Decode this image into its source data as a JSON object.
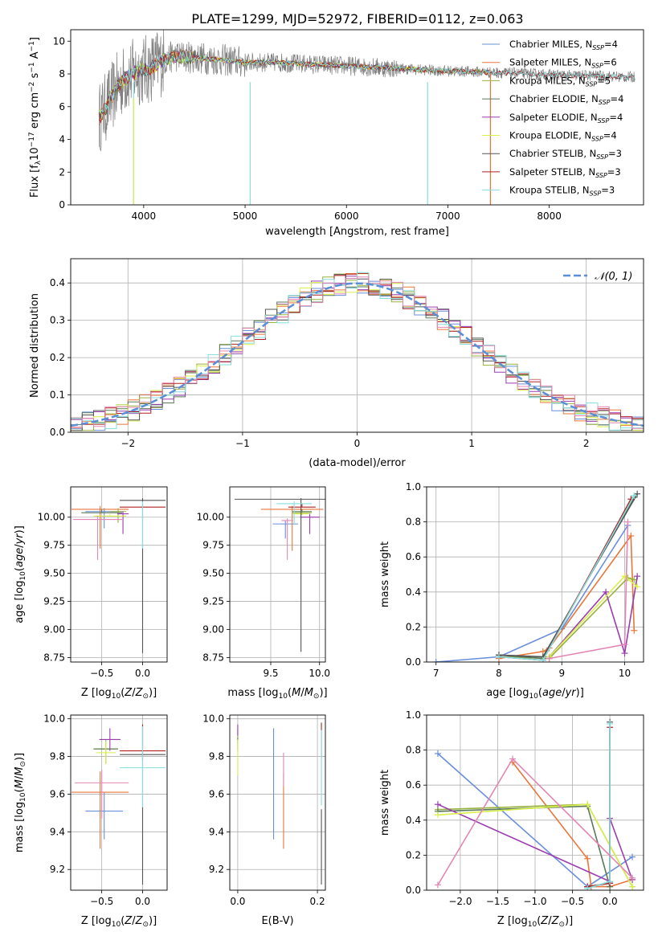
{
  "figure_title": "PLATE=1299, MJD=52972, FIBERID=0112, z=0.063",
  "colors": [
    "#6a8fdb",
    "#e8763a",
    "#98b23e",
    "#5a7a5a",
    "#9b3db0",
    "#d9ef4c",
    "#555555",
    "#b22222",
    "#86dede",
    "#e386b4"
  ],
  "model_names": [
    "Chabrier MILES",
    "Salpeter MILES",
    "Kroupa MILES",
    "Chabrier ELODIE",
    "Salpeter ELODIE",
    "Kroupa ELODIE",
    "Chabrier STELIB",
    "Salpeter STELIB",
    "Kroupa STELIB"
  ],
  "chart_data": [
    {
      "id": "spectrum",
      "type": "line",
      "title": "PLATE=1299, MJD=52972, FIBERID=0112, z=0.063",
      "xlabel": "wavelength [Angstrom, rest frame]",
      "ylabel": "Flux [f_λ 10^-17 erg cm^-2 s^-1 A^-1]",
      "xlim": [
        3280,
        8930
      ],
      "ylim": [
        0,
        10.7
      ],
      "xticks": [
        "4000",
        "5000",
        "6000",
        "7000",
        "8000"
      ],
      "yticks": [
        "0",
        "2",
        "4",
        "6",
        "8",
        "10"
      ],
      "grid": false,
      "legend_position": "top-right",
      "legend": [
        {
          "label": "Chabrier MILES, N",
          "sub": "SSP",
          "suffix": "=4"
        },
        {
          "label": "Salpeter MILES, N",
          "sub": "SSP",
          "suffix": "=6"
        },
        {
          "label": "Kroupa MILES, N",
          "sub": "SSP",
          "suffix": "=5"
        },
        {
          "label": "Chabrier ELODIE, N",
          "sub": "SSP",
          "suffix": "=4"
        },
        {
          "label": "Salpeter ELODIE, N",
          "sub": "SSP",
          "suffix": "=4"
        },
        {
          "label": "Kroupa ELODIE, N",
          "sub": "SSP",
          "suffix": "=4"
        },
        {
          "label": "Chabrier STELIB, N",
          "sub": "SSP",
          "suffix": "=3"
        },
        {
          "label": "Salpeter STELIB, N",
          "sub": "SSP",
          "suffix": "=3"
        },
        {
          "label": "Kroupa STELIB, N",
          "sub": "SSP",
          "suffix": "=3"
        }
      ],
      "data_continuum": {
        "x": [
          3560,
          3650,
          3750,
          3850,
          3950,
          4050,
          4150,
          4300,
          4500,
          4700,
          5000,
          5300,
          5600,
          6000,
          6300,
          6600,
          6900,
          7200,
          7400,
          7600,
          7800,
          8000,
          8200,
          8400,
          8600,
          8800
        ],
        "y": [
          5.3,
          6.2,
          7.3,
          7.9,
          8.2,
          8.3,
          8.7,
          9.1,
          9.0,
          8.9,
          8.7,
          8.7,
          8.6,
          8.5,
          8.4,
          8.3,
          8.2,
          8.15,
          8.1,
          8.05,
          8.0,
          7.95,
          7.9,
          7.9,
          7.85,
          7.8
        ]
      },
      "model_extents": [
        [
          3560,
          7410
        ],
        [
          3560,
          7430
        ],
        [
          3560,
          7410
        ],
        [
          3560,
          6800
        ],
        [
          3560,
          6800
        ],
        [
          3560,
          6800
        ],
        [
          3560,
          8850
        ],
        [
          3560,
          8850
        ],
        [
          3560,
          8850
        ]
      ]
    },
    {
      "id": "residuals",
      "type": "step",
      "xlabel": "(data-model)/error",
      "ylabel": "Normed distribution",
      "xlim": [
        -2.5,
        2.5
      ],
      "ylim": [
        0,
        0.465
      ],
      "xticks": [
        "−2",
        "−1",
        "0",
        "1",
        "2"
      ],
      "yticks": [
        "0.0",
        "0.1",
        "0.2",
        "0.3",
        "0.4"
      ],
      "grid": true,
      "legend_position": "top-right",
      "gaussian_label": "𝒩(0, 1)",
      "gaussian": {
        "mu": 0,
        "sigma": 1
      }
    },
    {
      "id": "age-vs-Z",
      "type": "errorbar",
      "xlabel": "Z [log10(Z/Z⊙)]",
      "ylabel": "age [log10(age/yr)]",
      "xlim": [
        -0.88,
        0.3
      ],
      "ylim": [
        8.71,
        10.27
      ],
      "xticks": [
        "−0.5",
        "0.0"
      ],
      "yticks": [
        "8.75",
        "9.00",
        "9.25",
        "9.50",
        "9.75",
        "10.00"
      ],
      "grid": true,
      "points": [
        {
          "x": -0.47,
          "xerr": 0.23,
          "y": 10.05,
          "yerr": [
            0.15,
            0.03
          ]
        },
        {
          "x": -0.52,
          "xerr": 0.35,
          "y": 10.07,
          "yerr": [
            0.35,
            0.03
          ]
        },
        {
          "x": -0.3,
          "xerr": 0.1,
          "y": 10.05,
          "yerr": [
            0.1,
            0.03
          ]
        },
        {
          "x": -0.5,
          "xerr": 0.25,
          "y": 10.04,
          "yerr": [
            0.0,
            0.03
          ]
        },
        {
          "x": -0.24,
          "xerr": 0.07,
          "y": 10.03,
          "yerr": [
            0.18,
            0.02
          ]
        },
        {
          "x": -0.4,
          "xerr": 0.2,
          "y": 10.01,
          "yerr": [
            0.0,
            0.02
          ]
        },
        {
          "x": 0.0,
          "xerr": 0.28,
          "y": 10.15,
          "yerr": [
            1.36,
            0.02
          ]
        },
        {
          "x": 0.0,
          "xerr": 0.28,
          "y": 10.09,
          "yerr": [
            0.0,
            0.02
          ]
        },
        {
          "x": 0.0,
          "xerr": 0.0,
          "y": 10.12,
          "yerr": [
            0.4,
            0.02
          ]
        },
        {
          "x": -0.55,
          "xerr": 0.3,
          "y": 9.98,
          "yerr": [
            0.36,
            0.03
          ]
        }
      ]
    },
    {
      "id": "age-vs-mass",
      "type": "errorbar",
      "xlabel": "mass [log10(M/M⊙)]",
      "ylabel": "",
      "xlim": [
        9.08,
        10.06
      ],
      "ylim": [
        8.71,
        10.27
      ],
      "xticks": [
        "9.5",
        "10.0"
      ],
      "yticks": [
        "8.75",
        "9.00",
        "9.25",
        "9.50",
        "9.75",
        "10.00"
      ],
      "grid": true,
      "points": [
        {
          "x": 9.65,
          "xerr": 0.13,
          "y": 9.94,
          "yerr": [
            0.13,
            0.03
          ]
        },
        {
          "x": 9.72,
          "xerr": 0.32,
          "y": 10.07,
          "yerr": [
            0.37,
            0.03
          ]
        },
        {
          "x": 9.82,
          "xerr": 0.1,
          "y": 10.04,
          "yerr": [
            0.02,
            0.02
          ]
        },
        {
          "x": 9.82,
          "xerr": 0.1,
          "y": 10.05,
          "yerr": [
            0.0,
            0.02
          ]
        },
        {
          "x": 9.9,
          "xerr": 0.1,
          "y": 10.0,
          "yerr": [
            0.15,
            0.03
          ]
        },
        {
          "x": 9.81,
          "xerr": 0.08,
          "y": 10.03,
          "yerr": [
            0.0,
            0.03
          ]
        },
        {
          "x": 9.81,
          "xerr": 0.68,
          "y": 10.16,
          "yerr": [
            1.36,
            0.01
          ]
        },
        {
          "x": 9.82,
          "xerr": 0.14,
          "y": 10.09,
          "yerr": [
            0.0,
            0.03
          ]
        },
        {
          "x": 9.74,
          "xerr": 0.18,
          "y": 10.12,
          "yerr": [
            0.19,
            0.02
          ]
        },
        {
          "x": 9.67,
          "xerr": 0.06,
          "y": 9.97,
          "yerr": [
            0.35,
            0.02
          ]
        }
      ]
    },
    {
      "id": "massweight-vs-age",
      "type": "line",
      "xlabel": "age [log10(age/yr)]",
      "ylabel": "mass weight",
      "xlim": [
        6.85,
        10.3
      ],
      "ylim": [
        0,
        1.0
      ],
      "xticks": [
        "7",
        "8",
        "9",
        "10"
      ],
      "yticks": [
        "0.0",
        "0.2",
        "0.4",
        "0.6",
        "0.8",
        "1.0"
      ],
      "grid": true,
      "series": [
        {
          "x": [
            7.0,
            8.0,
            9.0,
            10.05
          ],
          "y": [
            0.0,
            0.03,
            0.19,
            0.78
          ]
        },
        {
          "x": [
            8.0,
            8.7,
            8.8,
            10.1,
            10.15
          ],
          "y": [
            0.02,
            0.06,
            0.08,
            0.72,
            0.18
          ]
        },
        {
          "x": [
            8.0,
            8.8,
            10.05,
            10.15
          ],
          "y": [
            0.03,
            0.02,
            0.48,
            0.47
          ]
        },
        {
          "x": [
            8.0,
            8.7,
            10.15
          ],
          "y": [
            0.04,
            0.02,
            0.94
          ]
        },
        {
          "x": [
            8.8,
            9.7,
            10.0,
            10.2
          ],
          "y": [
            0.03,
            0.4,
            0.05,
            0.49
          ]
        },
        {
          "x": [
            8.8,
            10.0,
            10.2
          ],
          "y": [
            0.03,
            0.49,
            0.43
          ]
        },
        {
          "x": [
            8.0,
            8.7,
            10.2
          ],
          "y": [
            0.04,
            0.03,
            0.96
          ]
        },
        {
          "x": [
            8.0,
            8.7,
            10.1
          ],
          "y": [
            0.03,
            0.01,
            0.93
          ]
        },
        {
          "x": [
            8.0,
            8.7,
            10.15
          ],
          "y": [
            0.03,
            0.01,
            0.95
          ]
        },
        {
          "x": [
            8.8,
            10.0,
            10.05
          ],
          "y": [
            0.02,
            0.1,
            0.8
          ]
        }
      ]
    },
    {
      "id": "mass-vs-Z",
      "type": "errorbar",
      "xlabel": "Z [log10(Z/Z⊙)]",
      "ylabel": "mass [log10(M/M⊙)]",
      "xlim": [
        -0.88,
        0.3
      ],
      "ylim": [
        9.09,
        10.02
      ],
      "xticks": [
        "−0.5",
        "0.0"
      ],
      "yticks": [
        "9.2",
        "9.4",
        "9.6",
        "9.8",
        "10.0"
      ],
      "grid": true,
      "points": [
        {
          "x": -0.47,
          "xerr": 0.23,
          "y": 9.51,
          "yerr": [
            0.15,
            0.1
          ]
        },
        {
          "x": -0.52,
          "xerr": 0.35,
          "y": 9.61,
          "yerr": [
            0.3,
            0.11
          ]
        },
        {
          "x": -0.45,
          "xerr": 0.15,
          "y": 9.84,
          "yerr": [
            0.08,
            0.05
          ]
        },
        {
          "x": -0.45,
          "xerr": 0.15,
          "y": 9.84,
          "yerr": [
            0.0,
            0.0
          ]
        },
        {
          "x": -0.4,
          "xerr": 0.13,
          "y": 9.89,
          "yerr": [
            0.06,
            0.06
          ]
        },
        {
          "x": -0.45,
          "xerr": 0.12,
          "y": 9.82,
          "yerr": [
            0.06,
            0.06
          ]
        },
        {
          "x": 0.0,
          "xerr": 0.28,
          "y": 9.81,
          "yerr": [
            0.69,
            0.15
          ]
        },
        {
          "x": 0.0,
          "xerr": 0.28,
          "y": 9.83,
          "yerr": [
            0.05,
            0.14
          ]
        },
        {
          "x": 0.0,
          "xerr": 0.28,
          "y": 9.74,
          "yerr": [
            0.21,
            0.22
          ]
        },
        {
          "x": -0.5,
          "xerr": 0.33,
          "y": 9.66,
          "yerr": [
            0.19,
            0.07
          ]
        }
      ]
    },
    {
      "id": "mass-vs-EBV",
      "type": "errorbar",
      "xlabel": "E(B-V)",
      "ylabel": "",
      "xlim": [
        -0.02,
        0.22
      ],
      "ylim": [
        9.09,
        10.02
      ],
      "xticks": [
        "0.0",
        "0.2"
      ],
      "yticks": [
        "9.2",
        "9.4",
        "9.6",
        "9.8",
        "10.0"
      ],
      "grid": true,
      "points": [
        {
          "x": 0.09,
          "xerr": 0,
          "y": 9.65,
          "yerr": [
            0.29,
            0.3
          ]
        },
        {
          "x": 0.115,
          "xerr": 0,
          "y": 9.51,
          "yerr": [
            0.2,
            0.2
          ]
        },
        {
          "x": 0.0,
          "xerr": 0,
          "y": 9.9,
          "yerr": [
            0.03,
            0.05
          ]
        },
        {
          "x": 0.0,
          "xerr": 0,
          "y": 9.85,
          "yerr": [
            0.02,
            0.05
          ]
        },
        {
          "x": 0.0,
          "xerr": 0,
          "y": 9.91,
          "yerr": [
            0.0,
            0.06
          ]
        },
        {
          "x": 0.0,
          "xerr": 0,
          "y": 9.82,
          "yerr": [
            0.12,
            0.07
          ]
        },
        {
          "x": 0.21,
          "xerr": 0,
          "y": 9.32,
          "yerr": [
            0.2,
            0.2
          ]
        },
        {
          "x": 0.21,
          "xerr": 0,
          "y": 9.86,
          "yerr": [
            0.07,
            0.12
          ]
        },
        {
          "x": 0.21,
          "xerr": 0,
          "y": 9.74,
          "yerr": [
            0.2,
            0.2
          ]
        },
        {
          "x": 0.115,
          "xerr": 0,
          "y": 9.7,
          "yerr": [
            0.06,
            0.12
          ]
        }
      ]
    },
    {
      "id": "massweight-vs-Z",
      "type": "line",
      "xlabel": "Z [log10(Z/Z⊙)]",
      "ylabel": "mass weight",
      "xlim": [
        -2.45,
        0.45
      ],
      "ylim": [
        0,
        1.0
      ],
      "xticks": [
        "−2.0",
        "−1.5",
        "−1.0",
        "−0.5",
        "0.0"
      ],
      "yticks": [
        "0.0",
        "0.2",
        "0.4",
        "0.6",
        "0.8",
        "1.0"
      ],
      "grid": true,
      "series": [
        {
          "x": [
            -2.3,
            -0.3,
            0.3
          ],
          "y": [
            0.78,
            0.02,
            0.19
          ]
        },
        {
          "x": [
            -1.3,
            -0.3,
            -0.25,
            0.0,
            0.3
          ],
          "y": [
            0.73,
            0.18,
            0.02,
            0.02,
            0.06
          ]
        },
        {
          "x": [
            -2.3,
            -0.3,
            0.3
          ],
          "y": [
            0.46,
            0.49,
            0.02
          ]
        },
        {
          "x": [
            -2.3,
            -0.3,
            0.0
          ],
          "y": [
            0.45,
            0.48,
            0.02
          ]
        },
        {
          "x": [
            -2.3,
            0.0,
            0.0,
            0.3
          ],
          "y": [
            0.49,
            0.05,
            0.41,
            0.06
          ]
        },
        {
          "x": [
            -2.3,
            -0.3,
            0.3
          ],
          "y": [
            0.43,
            0.49,
            0.02
          ]
        },
        {
          "x": [
            -0.3,
            0.0,
            0.0
          ],
          "y": [
            0.02,
            0.04,
            0.96
          ]
        },
        {
          "x": [
            -0.3,
            0.0,
            0.0
          ],
          "y": [
            0.02,
            0.04,
            0.93
          ]
        },
        {
          "x": [
            -0.3,
            0.0,
            0.0
          ],
          "y": [
            0.01,
            0.05,
            0.95
          ]
        },
        {
          "x": [
            -2.3,
            -1.3,
            0.3
          ],
          "y": [
            0.03,
            0.75,
            0.07
          ]
        }
      ]
    }
  ]
}
